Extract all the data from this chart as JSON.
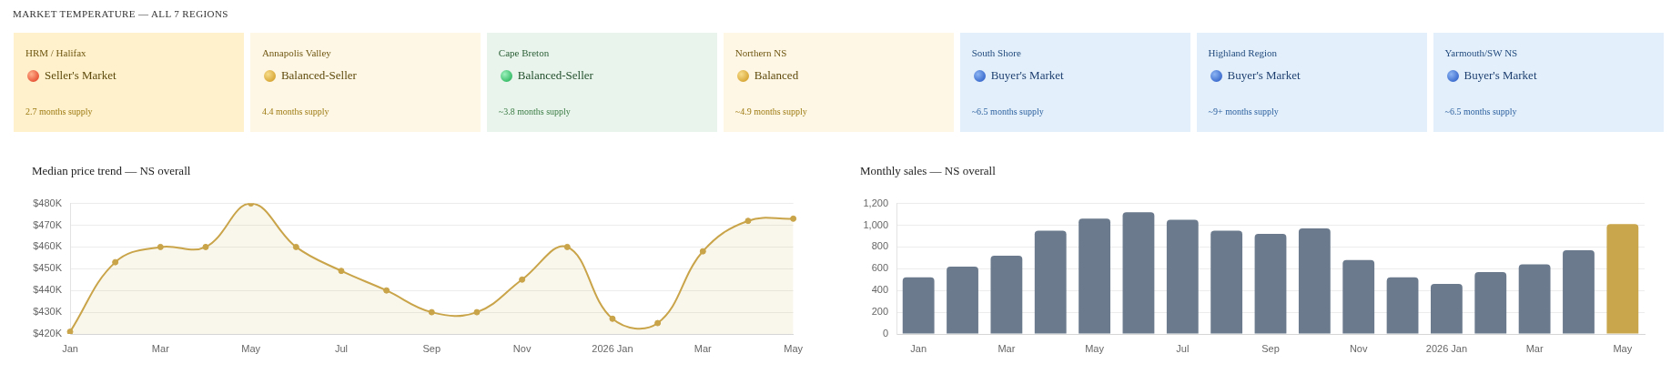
{
  "chart_data": [
    {
      "type": "other",
      "title": "MARKET TEMPERATURE — ALL 7 REGIONS",
      "categories": [
        "HRM / Halifax",
        "Annapolis Valley",
        "Cape Breton",
        "Northern NS",
        "South Shore",
        "Highland Region",
        "Yarmouth/SW NS"
      ],
      "annotations": [
        "Seller's Market",
        "2.7 months supply",
        "Balanced-Seller",
        "4.4 months supply",
        "Balanced-Seller",
        "~3.8 months supply",
        "Balanced",
        "~4.9 months supply",
        "Buyer's Market",
        "~6.5 months supply",
        "Buyer's Market",
        "~9+ months supply",
        "Buyer's Market",
        "~6.5 months supply"
      ]
    },
    {
      "type": "area",
      "title": "Median price trend — NS overall",
      "categories": [
        "Jan",
        null,
        "Mar",
        null,
        "May",
        null,
        "Jul",
        null,
        "Sep",
        null,
        "Nov",
        null,
        "2026 Jan",
        null,
        "Mar",
        null,
        "May"
      ],
      "values": [
        421000,
        453000,
        460000,
        460000,
        480000,
        460000,
        449000,
        440000,
        430000,
        430000,
        445000,
        460000,
        427000,
        425000,
        458000,
        472000,
        473000
      ],
      "color": "#c9a449",
      "ylim": [
        420000,
        480000
      ],
      "yticks": [
        {
          "value": 420000,
          "label": "$420K"
        },
        {
          "value": 430000,
          "label": "$430K"
        },
        {
          "value": 440000,
          "label": "$440K"
        },
        {
          "value": 450000,
          "label": "$450K"
        },
        {
          "value": 460000,
          "label": "$460K"
        },
        {
          "value": 470000,
          "label": "$470K"
        },
        {
          "value": 480000,
          "label": "$480K"
        }
      ],
      "grid": "y",
      "marker": "circle"
    },
    {
      "type": "bar",
      "title": "Monthly sales — NS overall",
      "categories": [
        "Jan",
        null,
        "Mar",
        null,
        "May",
        null,
        "Jul",
        null,
        "Sep",
        null,
        "Nov",
        null,
        "2026 Jan",
        null,
        "Mar",
        null,
        "May"
      ],
      "values": [
        520,
        620,
        720,
        950,
        1060,
        1120,
        1050,
        950,
        920,
        970,
        680,
        520,
        460,
        570,
        640,
        770,
        1010
      ],
      "colors": [
        "#6b7a8d",
        "#6b7a8d",
        "#6b7a8d",
        "#6b7a8d",
        "#6b7a8d",
        "#6b7a8d",
        "#6b7a8d",
        "#6b7a8d",
        "#6b7a8d",
        "#6b7a8d",
        "#6b7a8d",
        "#6b7a8d",
        "#6b7a8d",
        "#6b7a8d",
        "#6b7a8d",
        "#6b7a8d",
        "#c9a64b"
      ],
      "ylim": [
        0,
        1200
      ],
      "yticks": [
        0,
        200,
        400,
        600,
        800,
        {
          "value": 1000,
          "label": "1,000"
        },
        {
          "value": 1200,
          "label": "1,200"
        }
      ],
      "grid": "y"
    }
  ]
}
